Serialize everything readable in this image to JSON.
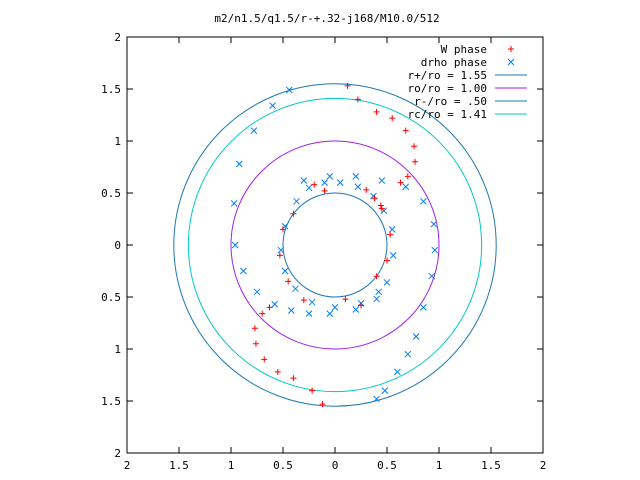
{
  "chart_data": {
    "type": "scatter",
    "title": "m2/n1.5/q1.5/r-+.32-j168/M10.0/512",
    "xlim": [
      -2,
      2
    ],
    "ylim": [
      -2,
      2
    ],
    "x_tick_values": [
      -2,
      -1.5,
      -1,
      -0.5,
      0,
      0.5,
      1,
      1.5,
      2
    ],
    "x_tick_labels": [
      "2",
      "1.5",
      "1",
      "0.5",
      "0",
      "0.5",
      "1",
      "1.5",
      "2"
    ],
    "y_tick_values": [
      2,
      1.5,
      1,
      0.5,
      0,
      -0.5,
      -1,
      -1.5,
      -2
    ],
    "y_tick_labels": [
      "2",
      "1.5",
      "1",
      "0.5",
      "0",
      "0.5",
      "1",
      "1.5",
      "2"
    ],
    "grid": false,
    "legend_position": "top-right",
    "legend": [
      {
        "label": "W phase",
        "kind": "point",
        "marker": "+",
        "color": "#ff0000"
      },
      {
        "label": "drho phase",
        "kind": "point",
        "marker": "x",
        "color": "#0080ff"
      },
      {
        "label": "r+/ro = 1.55",
        "kind": "circle",
        "color": "#1f77b4"
      },
      {
        "label": "ro/ro = 1.00",
        "kind": "circle",
        "color": "#a020f0"
      },
      {
        "label": "r-/ro = .50",
        "kind": "circle",
        "color": "#1f77b4"
      },
      {
        "label": "rc/ro = 1.41",
        "kind": "circle",
        "color": "#00c8c8"
      }
    ],
    "circles": [
      {
        "name": "r+/ro",
        "radius": 1.55,
        "color": "#1f77b4"
      },
      {
        "name": "ro/ro",
        "radius": 1.0,
        "color": "#a020f0"
      },
      {
        "name": "r-/ro",
        "radius": 0.5,
        "color": "#1f77b4"
      },
      {
        "name": "rc/ro",
        "radius": 1.41,
        "color": "#00c8c8"
      }
    ],
    "series": [
      {
        "name": "drho phase",
        "marker": "x",
        "color": "#0080ff",
        "points": [
          [
            -0.44,
            1.49
          ],
          [
            -0.6,
            1.34
          ],
          [
            -0.78,
            1.1
          ],
          [
            -0.92,
            0.78
          ],
          [
            -0.97,
            0.4
          ],
          [
            -0.96,
            0.0
          ],
          [
            -0.88,
            -0.25
          ],
          [
            -0.75,
            -0.45
          ],
          [
            -0.58,
            -0.57
          ],
          [
            -0.42,
            -0.63
          ],
          [
            -0.25,
            -0.66
          ],
          [
            -0.05,
            -0.66
          ],
          [
            0.2,
            -0.62
          ],
          [
            0.4,
            -0.52
          ],
          [
            0.5,
            -0.36
          ],
          [
            0.56,
            -0.1
          ],
          [
            0.55,
            0.15
          ],
          [
            0.47,
            0.33
          ],
          [
            0.37,
            0.47
          ],
          [
            0.22,
            0.56
          ],
          [
            0.05,
            0.6
          ],
          [
            -0.1,
            0.6
          ],
          [
            -0.25,
            0.55
          ],
          [
            -0.37,
            0.42
          ],
          [
            -0.48,
            0.18
          ],
          [
            -0.52,
            -0.05
          ],
          [
            -0.48,
            -0.25
          ],
          [
            -0.38,
            -0.42
          ],
          [
            -0.22,
            -0.55
          ],
          [
            0.0,
            -0.6
          ],
          [
            0.25,
            -0.56
          ],
          [
            0.42,
            -0.45
          ],
          [
            -0.3,
            0.62
          ],
          [
            -0.05,
            0.66
          ],
          [
            0.2,
            0.66
          ],
          [
            0.45,
            0.62
          ],
          [
            0.68,
            0.56
          ],
          [
            0.85,
            0.42
          ],
          [
            0.95,
            0.2
          ],
          [
            0.96,
            -0.05
          ],
          [
            0.93,
            -0.3
          ],
          [
            0.85,
            -0.6
          ],
          [
            0.78,
            -0.88
          ],
          [
            0.7,
            -1.05
          ],
          [
            0.6,
            -1.22
          ],
          [
            0.48,
            -1.4
          ],
          [
            0.4,
            -1.48
          ]
        ]
      },
      {
        "name": "W phase",
        "marker": "+",
        "color": "#ff0000",
        "points": [
          [
            0.12,
            1.53
          ],
          [
            0.22,
            1.4
          ],
          [
            0.4,
            1.28
          ],
          [
            0.55,
            1.22
          ],
          [
            0.68,
            1.1
          ],
          [
            0.76,
            0.95
          ],
          [
            0.77,
            0.8
          ],
          [
            0.7,
            0.66
          ],
          [
            0.63,
            0.6
          ],
          [
            -0.12,
            -1.53
          ],
          [
            -0.22,
            -1.4
          ],
          [
            -0.4,
            -1.28
          ],
          [
            -0.55,
            -1.22
          ],
          [
            -0.68,
            -1.1
          ],
          [
            -0.76,
            -0.95
          ],
          [
            -0.77,
            -0.8
          ],
          [
            -0.7,
            -0.66
          ],
          [
            -0.63,
            -0.6
          ],
          [
            0.45,
            0.35
          ],
          [
            0.53,
            0.1
          ],
          [
            0.5,
            -0.15
          ],
          [
            0.4,
            -0.3
          ],
          [
            -0.45,
            -0.35
          ],
          [
            -0.53,
            -0.1
          ],
          [
            -0.5,
            0.15
          ],
          [
            -0.4,
            0.3
          ],
          [
            -0.1,
            0.52
          ],
          [
            0.1,
            -0.52
          ],
          [
            -0.2,
            0.58
          ],
          [
            0.25,
            -0.58
          ],
          [
            0.3,
            0.53
          ],
          [
            0.38,
            0.45
          ],
          [
            0.44,
            0.38
          ],
          [
            -0.3,
            -0.53
          ]
        ]
      }
    ]
  }
}
